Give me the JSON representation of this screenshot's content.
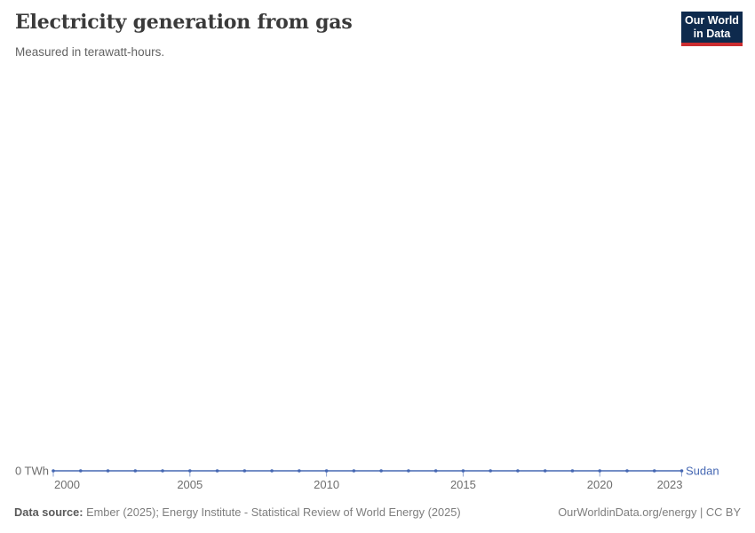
{
  "header": {
    "title": "Electricity generation from gas",
    "subtitle": "Measured in terawatt-hours."
  },
  "logo": {
    "line1": "Our World",
    "line2": "in Data",
    "bg_color": "#0e2a4d",
    "accent_color": "#cb2d30"
  },
  "footer": {
    "source_label": "Data source:",
    "source_text": " Ember (2025); Energy Institute - Statistical Review of World Energy (2025)",
    "right_text": "OurWorldinData.org/energy | CC BY"
  },
  "chart_data": {
    "type": "line",
    "title": "Electricity generation from gas",
    "subtitle": "Measured in terawatt-hours.",
    "unit": "TWh",
    "x": [
      2000,
      2001,
      2002,
      2003,
      2004,
      2005,
      2006,
      2007,
      2008,
      2009,
      2010,
      2011,
      2012,
      2013,
      2014,
      2015,
      2016,
      2017,
      2018,
      2019,
      2020,
      2021,
      2022,
      2023
    ],
    "series": [
      {
        "name": "Sudan",
        "color": "#4668b3",
        "values": [
          0,
          0,
          0,
          0,
          0,
          0,
          0,
          0,
          0,
          0,
          0,
          0,
          0,
          0,
          0,
          0,
          0,
          0,
          0,
          0,
          0,
          0,
          0,
          0
        ]
      }
    ],
    "xlim": [
      2000,
      2023
    ],
    "ylim": [
      0,
      0
    ],
    "x_ticks": [
      2000,
      2005,
      2010,
      2015,
      2020,
      2023
    ],
    "y_zero_label": "0 TWh",
    "grid": false,
    "legend_position": "line-end",
    "axis_label_color": "#6e6e6e"
  }
}
